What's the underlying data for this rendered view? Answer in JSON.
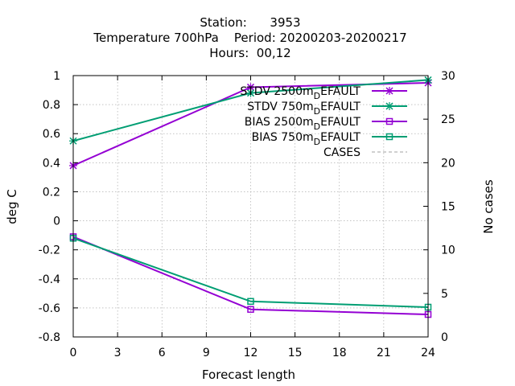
{
  "chart_data": {
    "type": "line",
    "title": [
      "Station:      3953",
      "Temperature 700hPa    Period: 20200203-20200217",
      "Hours:  00,12"
    ],
    "xlabel": "Forecast length",
    "ylabel": "deg C",
    "y2label": "No cases",
    "xlim": [
      0,
      24
    ],
    "ylim": [
      -0.8,
      1.0
    ],
    "y2lim": [
      0,
      30
    ],
    "xticks": [
      "0",
      "3",
      "6",
      "9",
      "12",
      "15",
      "18",
      "21",
      "24"
    ],
    "yticks": [
      "-0.8",
      "-0.6",
      "-0.4",
      "-0.2",
      "0",
      "0.2",
      "0.4",
      "0.6",
      "0.8",
      "1"
    ],
    "y2ticks": [
      "0",
      "5",
      "10",
      "15",
      "20",
      "25",
      "30"
    ],
    "grid": true,
    "legend_position": "top-right",
    "series": [
      {
        "name": "STDV 2500m",
        "name_sub": "D",
        "name_tail": "EFAULT",
        "color": "#9400d3",
        "marker": "x",
        "x": [
          0,
          12,
          24
        ],
        "y": [
          0.38,
          0.92,
          0.95
        ]
      },
      {
        "name": "STDV 750m",
        "name_sub": "D",
        "name_tail": "EFAULT",
        "color": "#009e73",
        "marker": "x",
        "x": [
          0,
          12,
          24
        ],
        "y": [
          0.55,
          0.88,
          0.97
        ]
      },
      {
        "name": "BIAS 2500m",
        "name_sub": "D",
        "name_tail": "EFAULT",
        "color": "#9400d3",
        "marker": "square",
        "x": [
          0,
          12,
          24
        ],
        "y": [
          -0.11,
          -0.61,
          -0.645
        ]
      },
      {
        "name": "BIAS 750m",
        "name_sub": "D",
        "name_tail": "EFAULT",
        "color": "#009e73",
        "marker": "square",
        "x": [
          0,
          12,
          24
        ],
        "y": [
          -0.12,
          -0.555,
          -0.595
        ]
      },
      {
        "name": "CASES",
        "name_sub": "",
        "name_tail": "",
        "color": "#a0a0a0",
        "marker": "none",
        "dashed": true,
        "axis": "y2",
        "x": [
          0,
          12,
          24
        ],
        "y": [
          30,
          30,
          30
        ]
      }
    ]
  }
}
